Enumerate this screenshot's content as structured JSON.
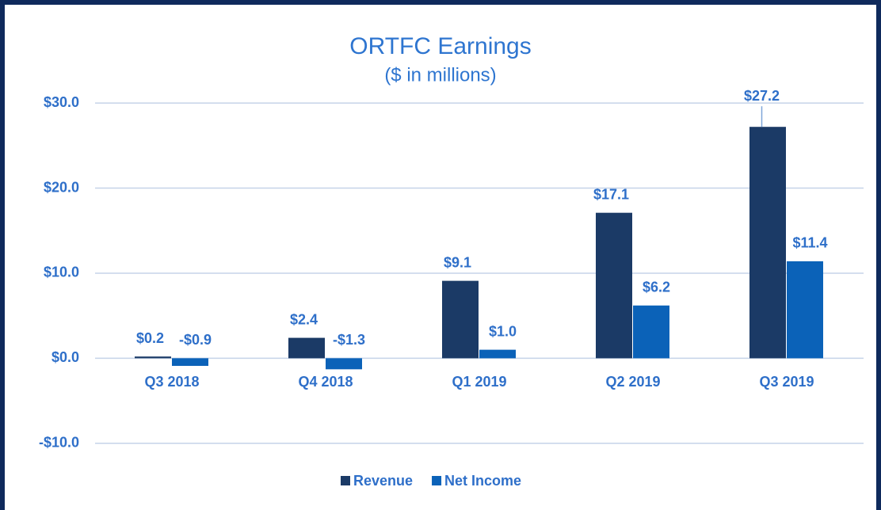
{
  "chart_data": {
    "type": "bar",
    "title": "ORTFC Earnings",
    "subtitle": "($ in millions)",
    "categories": [
      "Q3 2018",
      "Q4 2018",
      "Q1 2019",
      "Q2 2019",
      "Q3 2019"
    ],
    "series": [
      {
        "name": "Revenue",
        "color": "#1b3a66",
        "values": [
          0.2,
          2.4,
          9.1,
          17.1,
          27.2
        ],
        "value_labels": [
          "$0.2",
          "$2.4",
          "$9.1",
          "$17.1",
          "$27.2"
        ]
      },
      {
        "name": "Net Income",
        "color": "#0b62b8",
        "values": [
          -0.9,
          -1.3,
          1.0,
          6.2,
          11.4
        ],
        "value_labels": [
          "-$0.9",
          "-$1.3",
          "$1.0",
          "$6.2",
          "$11.4"
        ]
      }
    ],
    "ylim": [
      -13,
      31.5
    ],
    "yticks": [
      {
        "value": -10,
        "label": "-$10.0"
      },
      {
        "value": 0,
        "label": "$0.0"
      },
      {
        "value": 10,
        "label": "$10.0"
      },
      {
        "value": 20,
        "label": "$20.0"
      },
      {
        "value": 30,
        "label": "$30.0"
      }
    ],
    "grid": true,
    "legend": "bottom"
  }
}
